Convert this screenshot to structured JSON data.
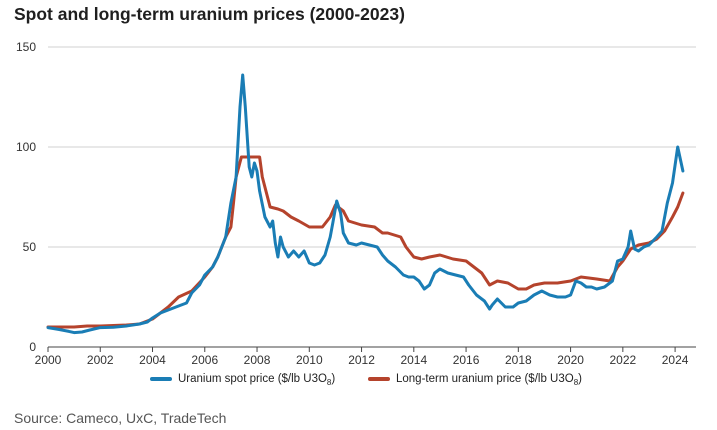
{
  "title": "Spot and long-term uranium prices (2000-2023)",
  "source": "Source: Cameco, UxC, TradeTech",
  "chart_data": {
    "type": "line",
    "title": "Spot and long-term uranium prices (2000-2023)",
    "xlabel": "",
    "ylabel": "",
    "xlim": [
      2000,
      2024.8
    ],
    "ylim": [
      0,
      150
    ],
    "x_ticks": [
      "2000",
      "2002",
      "2004",
      "2006",
      "2008",
      "2010",
      "2012",
      "2014",
      "2016",
      "2018",
      "2020",
      "2022",
      "2024"
    ],
    "y_ticks": [
      "0",
      "50",
      "100",
      "150"
    ],
    "grid": "horizontal",
    "legend_position": "bottom",
    "series": [
      {
        "name": "Uranium spot price ($/lb U3O8)",
        "legend_text": "Uranium spot price ($/lb U",
        "color": "#1a7db5",
        "points": [
          [
            2000.0,
            9.7
          ],
          [
            2000.4,
            8.8
          ],
          [
            2000.8,
            7.8
          ],
          [
            2001.0,
            7.2
          ],
          [
            2001.3,
            7.5
          ],
          [
            2001.6,
            8.5
          ],
          [
            2002.0,
            9.7
          ],
          [
            2002.5,
            9.9
          ],
          [
            2003.0,
            10.5
          ],
          [
            2003.5,
            11.5
          ],
          [
            2003.8,
            12.5
          ],
          [
            2004.0,
            14.5
          ],
          [
            2004.3,
            17.0
          ],
          [
            2004.6,
            18.5
          ],
          [
            2005.0,
            20.5
          ],
          [
            2005.3,
            22.0
          ],
          [
            2005.5,
            27.0
          ],
          [
            2005.8,
            31.0
          ],
          [
            2006.0,
            36.0
          ],
          [
            2006.3,
            40.0
          ],
          [
            2006.5,
            45.0
          ],
          [
            2006.8,
            55.0
          ],
          [
            2007.0,
            72.0
          ],
          [
            2007.2,
            85.0
          ],
          [
            2007.35,
            120.0
          ],
          [
            2007.45,
            136.0
          ],
          [
            2007.55,
            120.0
          ],
          [
            2007.7,
            90.0
          ],
          [
            2007.8,
            85.0
          ],
          [
            2007.9,
            92.0
          ],
          [
            2008.0,
            88.0
          ],
          [
            2008.1,
            78.0
          ],
          [
            2008.3,
            65.0
          ],
          [
            2008.5,
            60.0
          ],
          [
            2008.6,
            63.0
          ],
          [
            2008.7,
            52.0
          ],
          [
            2008.8,
            45.0
          ],
          [
            2008.9,
            55.0
          ],
          [
            2009.0,
            50.0
          ],
          [
            2009.2,
            45.0
          ],
          [
            2009.4,
            48.0
          ],
          [
            2009.6,
            45.0
          ],
          [
            2009.8,
            48.0
          ],
          [
            2010.0,
            42.0
          ],
          [
            2010.2,
            41.0
          ],
          [
            2010.4,
            42.0
          ],
          [
            2010.6,
            46.0
          ],
          [
            2010.8,
            55.0
          ],
          [
            2010.9,
            62.0
          ],
          [
            2011.05,
            73.0
          ],
          [
            2011.2,
            67.0
          ],
          [
            2011.3,
            57.0
          ],
          [
            2011.5,
            52.0
          ],
          [
            2011.8,
            51.0
          ],
          [
            2012.0,
            52.0
          ],
          [
            2012.3,
            51.0
          ],
          [
            2012.6,
            50.0
          ],
          [
            2012.8,
            46.0
          ],
          [
            2013.0,
            43.0
          ],
          [
            2013.3,
            40.0
          ],
          [
            2013.6,
            36.0
          ],
          [
            2013.8,
            35.0
          ],
          [
            2014.0,
            35.0
          ],
          [
            2014.2,
            33.0
          ],
          [
            2014.4,
            29.0
          ],
          [
            2014.6,
            31.0
          ],
          [
            2014.8,
            37.0
          ],
          [
            2015.0,
            39.0
          ],
          [
            2015.3,
            37.0
          ],
          [
            2015.6,
            36.0
          ],
          [
            2015.9,
            35.0
          ],
          [
            2016.1,
            31.0
          ],
          [
            2016.4,
            26.0
          ],
          [
            2016.7,
            23.0
          ],
          [
            2016.9,
            19.0
          ],
          [
            2017.0,
            21.0
          ],
          [
            2017.2,
            24.0
          ],
          [
            2017.5,
            20.0
          ],
          [
            2017.8,
            20.0
          ],
          [
            2018.0,
            22.0
          ],
          [
            2018.3,
            23.0
          ],
          [
            2018.6,
            26.0
          ],
          [
            2018.9,
            28.0
          ],
          [
            2019.2,
            26.0
          ],
          [
            2019.5,
            25.0
          ],
          [
            2019.8,
            25.0
          ],
          [
            2020.0,
            26.0
          ],
          [
            2020.2,
            33.0
          ],
          [
            2020.4,
            32.0
          ],
          [
            2020.6,
            30.0
          ],
          [
            2020.8,
            30.0
          ],
          [
            2021.0,
            29.0
          ],
          [
            2021.3,
            30.0
          ],
          [
            2021.6,
            33.0
          ],
          [
            2021.8,
            43.0
          ],
          [
            2022.0,
            44.0
          ],
          [
            2022.2,
            50.0
          ],
          [
            2022.3,
            58.0
          ],
          [
            2022.45,
            49.0
          ],
          [
            2022.6,
            48.0
          ],
          [
            2022.8,
            50.0
          ],
          [
            2023.0,
            51.0
          ],
          [
            2023.3,
            55.0
          ],
          [
            2023.5,
            58.0
          ],
          [
            2023.7,
            72.0
          ],
          [
            2023.9,
            82.0
          ],
          [
            2024.0,
            91.0
          ],
          [
            2024.1,
            100.0
          ],
          [
            2024.3,
            88.0
          ]
        ]
      },
      {
        "name": "Long-term uranium price ($/lb U3O8)",
        "legend_text": "Long-term uranium price ($/lb U",
        "color": "#b5432c",
        "points": [
          [
            2000.0,
            10.0
          ],
          [
            2000.5,
            10.0
          ],
          [
            2001.0,
            10.0
          ],
          [
            2001.5,
            10.5
          ],
          [
            2002.0,
            10.5
          ],
          [
            2003.0,
            11.0
          ],
          [
            2003.5,
            11.5
          ],
          [
            2004.0,
            14.0
          ],
          [
            2004.3,
            17.0
          ],
          [
            2004.6,
            20.0
          ],
          [
            2005.0,
            25.0
          ],
          [
            2005.5,
            28.0
          ],
          [
            2006.0,
            35.0
          ],
          [
            2006.3,
            40.0
          ],
          [
            2006.5,
            45.0
          ],
          [
            2006.8,
            55.0
          ],
          [
            2007.0,
            60.0
          ],
          [
            2007.1,
            72.0
          ],
          [
            2007.2,
            85.0
          ],
          [
            2007.4,
            95.0
          ],
          [
            2007.8,
            95.0
          ],
          [
            2008.1,
            95.0
          ],
          [
            2008.2,
            85.0
          ],
          [
            2008.3,
            80.0
          ],
          [
            2008.5,
            70.0
          ],
          [
            2008.8,
            69.0
          ],
          [
            2009.0,
            68.0
          ],
          [
            2009.3,
            65.0
          ],
          [
            2009.6,
            63.0
          ],
          [
            2010.0,
            60.0
          ],
          [
            2010.5,
            60.0
          ],
          [
            2010.8,
            65.0
          ],
          [
            2011.0,
            71.0
          ],
          [
            2011.3,
            68.0
          ],
          [
            2011.5,
            63.0
          ],
          [
            2012.0,
            61.0
          ],
          [
            2012.5,
            60.0
          ],
          [
            2012.8,
            57.0
          ],
          [
            2013.0,
            57.0
          ],
          [
            2013.5,
            55.0
          ],
          [
            2013.7,
            50.0
          ],
          [
            2014.0,
            45.0
          ],
          [
            2014.3,
            44.0
          ],
          [
            2014.6,
            45.0
          ],
          [
            2015.0,
            46.0
          ],
          [
            2015.5,
            44.0
          ],
          [
            2016.0,
            43.0
          ],
          [
            2016.3,
            40.0
          ],
          [
            2016.6,
            37.0
          ],
          [
            2016.9,
            31.0
          ],
          [
            2017.2,
            33.0
          ],
          [
            2017.6,
            32.0
          ],
          [
            2018.0,
            29.0
          ],
          [
            2018.3,
            29.0
          ],
          [
            2018.6,
            31.0
          ],
          [
            2019.0,
            32.0
          ],
          [
            2019.5,
            32.0
          ],
          [
            2020.0,
            33.0
          ],
          [
            2020.4,
            35.0
          ],
          [
            2021.0,
            34.0
          ],
          [
            2021.5,
            33.0
          ],
          [
            2021.8,
            40.0
          ],
          [
            2022.0,
            43.0
          ],
          [
            2022.3,
            49.0
          ],
          [
            2022.6,
            51.0
          ],
          [
            2023.0,
            52.0
          ],
          [
            2023.3,
            54.0
          ],
          [
            2023.6,
            58.0
          ],
          [
            2023.9,
            65.0
          ],
          [
            2024.1,
            70.0
          ],
          [
            2024.3,
            77.0
          ]
        ]
      }
    ]
  }
}
